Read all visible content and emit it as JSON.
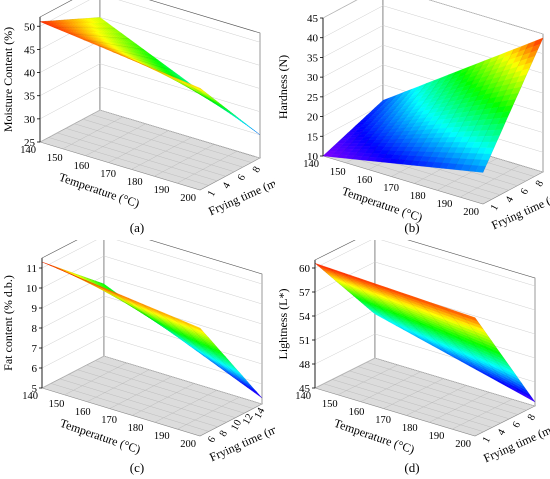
{
  "chart_data": [
    {
      "type": "surface3d",
      "panel_label": "(a)",
      "zlabel": "Moisture Content (%)",
      "xlabel": "Temperature (°C)",
      "ylabel": "Frying time (min)",
      "x_ticks": [
        "140",
        "150",
        "160",
        "170",
        "180",
        "190",
        "200"
      ],
      "y_ticks": [
        "1",
        "4",
        "6",
        "8"
      ],
      "z_ticks": [
        "25",
        "30",
        "35",
        "40",
        "45",
        "50"
      ],
      "xlim": [
        140,
        200
      ],
      "ylim": [
        1,
        9
      ],
      "zlim": [
        25,
        52
      ],
      "x": [
        140,
        200
      ],
      "y": [
        1,
        9
      ],
      "z_corners": {
        "x_min_y_min": 51,
        "x_max_y_min": 47,
        "x_min_y_max": 45,
        "x_max_y_max": 30
      }
    },
    {
      "type": "surface3d",
      "panel_label": "(b)",
      "zlabel": "Hardness (N)",
      "xlabel": "Temperature (°C)",
      "ylabel": "Frying time (min)",
      "x_ticks": [
        "140",
        "150",
        "160",
        "170",
        "180",
        "190",
        "200"
      ],
      "y_ticks": [
        "1",
        "4",
        "6",
        "8"
      ],
      "z_ticks": [
        "10",
        "15",
        "20",
        "25",
        "30",
        "35",
        "40",
        "45"
      ],
      "xlim": [
        140,
        200
      ],
      "ylim": [
        1,
        9
      ],
      "zlim": [
        10,
        45
      ],
      "x": [
        140,
        200
      ],
      "y": [
        1,
        9
      ],
      "z_corners": {
        "x_min_y_min": 10,
        "x_max_y_min": 18,
        "x_min_y_max": 16,
        "x_max_y_max": 44
      }
    },
    {
      "type": "surface3d",
      "panel_label": "(c)",
      "zlabel": "Fat content (% d.b.)",
      "xlabel": "Temperature (°C)",
      "ylabel": "Frying time (min)",
      "x_ticks": [
        "140",
        "150",
        "160",
        "170",
        "180",
        "190",
        "200"
      ],
      "y_ticks": [
        "6",
        "8",
        "10",
        "12",
        "14"
      ],
      "z_ticks": [
        "5",
        "6",
        "7",
        "8",
        "9",
        "10",
        "11"
      ],
      "xlim": [
        140,
        200
      ],
      "ylim": [
        5,
        15
      ],
      "zlim": [
        5,
        11.5
      ],
      "x": [
        140,
        200
      ],
      "y": [
        5,
        15
      ],
      "z_corners": {
        "x_min_y_min": 11.3,
        "x_max_y_min": 10.4,
        "x_min_y_max": 8.6,
        "x_max_y_max": 5.3
      }
    },
    {
      "type": "surface3d",
      "panel_label": "(d)",
      "zlabel": "Lightness (L*)",
      "xlabel": "Temperature (°C)",
      "ylabel": "Frying time (min)",
      "x_ticks": [
        "140",
        "150",
        "160",
        "170",
        "180",
        "190",
        "200"
      ],
      "y_ticks": [
        "1",
        "4",
        "6",
        "8"
      ],
      "z_ticks": [
        "45",
        "48",
        "51",
        "54",
        "57",
        "60"
      ],
      "xlim": [
        140,
        200
      ],
      "ylim": [
        1,
        9
      ],
      "zlim": [
        45,
        61
      ],
      "x": [
        140,
        200
      ],
      "y": [
        1,
        9
      ],
      "z_corners": {
        "x_min_y_min": 60.6,
        "x_max_y_min": 59.8,
        "x_min_y_max": 50.5,
        "x_max_y_max": 45.5
      }
    }
  ]
}
